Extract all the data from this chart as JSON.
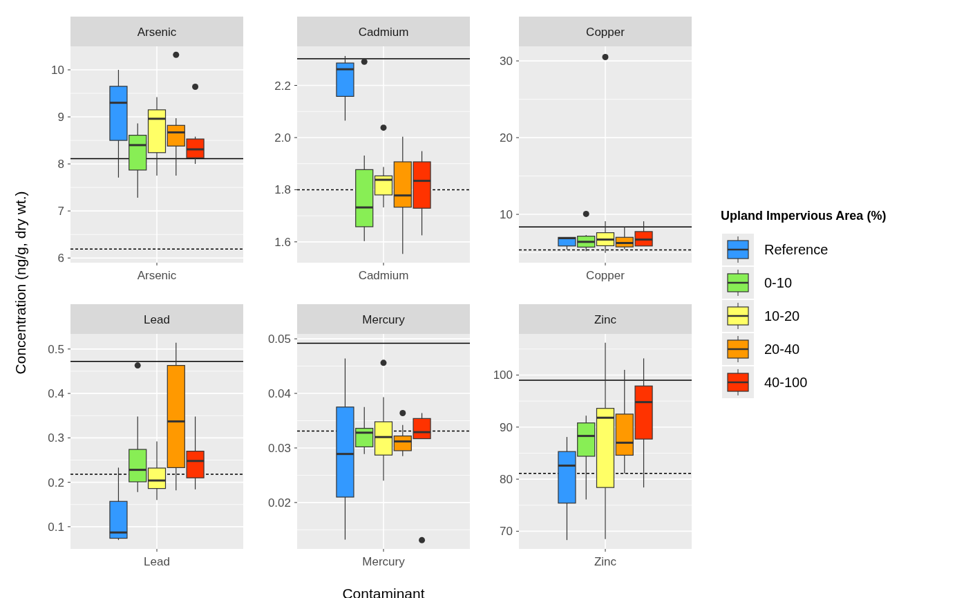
{
  "chart_data": [
    {
      "type": "box",
      "title": "Arsenic",
      "categories": [
        null,
        null,
        null,
        null,
        "Arsenic",
        null,
        null,
        null,
        null
      ],
      "ylabel": "Concentration (ng/g, dry wt.)",
      "legend_title": "Upland Impervious Area (%)",
      "legend": "right",
      "grid": true,
      "ylim": [
        5.9,
        10.5
      ],
      "yticks": [
        6,
        7,
        8,
        9,
        10
      ],
      "ref_lines": [
        {
          "axis": "y",
          "value": 8.11,
          "line_style": "solid"
        },
        {
          "axis": "y",
          "value": 6.19,
          "line_style": "dashed"
        }
      ],
      "series": [
        {
          "name": "Reference",
          "color": "#3399ff",
          "boxes": [
            null,
            null,
            {
              "low": 7.71,
              "q1": 8.5,
              "median": 9.3,
              "q3": 9.65,
              "high": 10.0
            },
            null,
            null,
            null,
            null,
            null,
            null
          ]
        },
        {
          "name": "0-10",
          "color": "#88ee55",
          "boxes": [
            null,
            null,
            null,
            {
              "low": 7.28,
              "q1": 7.87,
              "median": 8.4,
              "q3": 8.61,
              "high": 8.86
            },
            null,
            null,
            null,
            null,
            null
          ]
        },
        {
          "name": "10-20",
          "color": "#ffff66",
          "boxes": [
            null,
            null,
            null,
            null,
            {
              "low": 7.75,
              "q1": 8.24,
              "median": 8.96,
              "q3": 9.15,
              "high": 9.42
            },
            null,
            null,
            null,
            null
          ]
        },
        {
          "name": "20-40",
          "color": "#ff9900",
          "boxes": [
            null,
            null,
            null,
            null,
            null,
            {
              "low": 7.75,
              "q1": 8.38,
              "median": 8.67,
              "q3": 8.82,
              "high": 8.97,
              "outliers": [
                10.32
              ]
            },
            null,
            null,
            null
          ]
        },
        {
          "name": "40-100",
          "color": "#ff3300",
          "boxes": [
            null,
            null,
            null,
            null,
            null,
            null,
            {
              "low": 8.0,
              "q1": 8.13,
              "median": 8.31,
              "q3": 8.53,
              "high": 8.58,
              "outliers": [
                9.64
              ]
            },
            null,
            null
          ]
        }
      ]
    },
    {
      "type": "box",
      "title": "Cadmium",
      "categories": [
        null,
        null,
        null,
        null,
        "Cadmium",
        null,
        null,
        null,
        null
      ],
      "grid": true,
      "ylim": [
        1.52,
        2.35
      ],
      "yticks": [
        {
          "value": 1.6,
          "label": "1.6"
        },
        {
          "value": 1.8,
          "label": "1.8"
        },
        {
          "value": 2.0,
          "label": "2.0"
        },
        {
          "value": 2.2,
          "label": "2.2"
        }
      ],
      "ref_lines": [
        {
          "axis": "y",
          "value": 2.302,
          "line_style": "solid"
        },
        {
          "axis": "y",
          "value": 1.8,
          "line_style": "dashed"
        }
      ],
      "series": [
        {
          "color": "#3399ff",
          "boxes": [
            null,
            null,
            {
              "low": 2.065,
              "q1": 2.158,
              "median": 2.262,
              "q3": 2.286,
              "high": 2.313
            },
            null,
            null,
            null,
            null,
            null,
            null
          ]
        },
        {
          "color": "#88ee55",
          "boxes": [
            null,
            null,
            null,
            {
              "low": 1.603,
              "q1": 1.658,
              "median": 1.732,
              "q3": 1.877,
              "high": 1.931,
              "outliers": [
                2.291
              ]
            },
            null,
            null,
            null,
            null,
            null
          ]
        },
        {
          "color": "#ffff66",
          "boxes": [
            null,
            null,
            null,
            null,
            {
              "low": 1.732,
              "q1": 1.78,
              "median": 1.838,
              "q3": 1.853,
              "high": 1.887,
              "outliers": [
                2.038
              ]
            },
            null,
            null,
            null,
            null
          ]
        },
        {
          "color": "#ff9900",
          "boxes": [
            null,
            null,
            null,
            null,
            null,
            {
              "low": 1.554,
              "q1": 1.733,
              "median": 1.778,
              "q3": 1.907,
              "high": 2.003
            },
            null,
            null,
            null
          ]
        },
        {
          "color": "#ff3300",
          "boxes": [
            null,
            null,
            null,
            null,
            null,
            null,
            {
              "low": 1.625,
              "q1": 1.729,
              "median": 1.834,
              "q3": 1.907,
              "high": 1.948
            },
            null,
            null
          ]
        }
      ]
    },
    {
      "type": "box",
      "title": "Copper",
      "categories": [
        null,
        null,
        null,
        null,
        "Copper",
        null,
        null,
        null,
        null
      ],
      "grid": true,
      "ylim": [
        3.7,
        31.9
      ],
      "yticks": [
        10,
        20,
        30
      ],
      "ref_lines": [
        {
          "axis": "y",
          "value": 8.36,
          "line_style": "solid"
        },
        {
          "axis": "y",
          "value": 5.37,
          "line_style": "dashed"
        }
      ],
      "series": [
        {
          "color": "#3399ff",
          "boxes": [
            null,
            null,
            {
              "low": 5.43,
              "q1": 5.88,
              "median": 6.9,
              "q3": 7.0,
              "high": 7.0
            },
            null,
            null,
            null,
            null,
            null,
            null
          ]
        },
        {
          "color": "#88ee55",
          "boxes": [
            null,
            null,
            null,
            {
              "low": 5.22,
              "q1": 5.73,
              "median": 6.42,
              "q3": 7.16,
              "high": 7.3,
              "outliers": [
                10.06
              ]
            },
            null,
            null,
            null,
            null,
            null
          ]
        },
        {
          "color": "#ffff66",
          "boxes": [
            null,
            null,
            null,
            null,
            {
              "low": 4.99,
              "q1": 5.91,
              "median": 6.72,
              "q3": 7.61,
              "high": 9.1,
              "outliers": [
                30.5
              ]
            },
            null,
            null,
            null,
            null
          ]
        },
        {
          "color": "#ff9900",
          "boxes": [
            null,
            null,
            null,
            null,
            null,
            {
              "low": 5.46,
              "q1": 5.76,
              "median": 6.27,
              "q3": 7.01,
              "high": 8.36
            },
            null,
            null,
            null
          ]
        },
        {
          "color": "#ff3300",
          "boxes": [
            null,
            null,
            null,
            null,
            null,
            null,
            {
              "low": 5.88,
              "q1": 5.88,
              "median": 6.72,
              "q3": 7.76,
              "high": 9.1
            },
            null,
            null
          ]
        }
      ]
    },
    {
      "type": "box",
      "title": "Lead",
      "categories": [
        null,
        null,
        null,
        null,
        "Lead",
        null,
        null,
        null,
        null
      ],
      "grid": true,
      "ylim": [
        0.05,
        0.534
      ],
      "yticks": [
        0.1,
        0.2,
        0.3,
        0.4,
        0.5
      ],
      "ref_lines": [
        {
          "axis": "y",
          "value": 0.472,
          "line_style": "solid"
        },
        {
          "axis": "y",
          "value": 0.218,
          "line_style": "dashed"
        }
      ],
      "series": [
        {
          "color": "#3399ff",
          "boxes": [
            null,
            null,
            {
              "low": 0.07,
              "q1": 0.074,
              "median": 0.087,
              "q3": 0.157,
              "high": 0.233
            },
            null,
            null,
            null,
            null,
            null,
            null
          ]
        },
        {
          "color": "#88ee55",
          "boxes": [
            null,
            null,
            null,
            {
              "low": 0.178,
              "q1": 0.201,
              "median": 0.228,
              "q3": 0.274,
              "high": 0.348,
              "outliers": [
                0.463
              ]
            },
            null,
            null,
            null,
            null,
            null
          ]
        },
        {
          "color": "#ffff66",
          "boxes": [
            null,
            null,
            null,
            null,
            {
              "low": 0.16,
              "q1": 0.186,
              "median": 0.204,
              "q3": 0.232,
              "high": 0.292
            },
            null,
            null,
            null,
            null
          ]
        },
        {
          "color": "#ff9900",
          "boxes": [
            null,
            null,
            null,
            null,
            null,
            {
              "low": 0.182,
              "q1": 0.233,
              "median": 0.337,
              "q3": 0.463,
              "high": 0.514
            },
            null,
            null,
            null
          ]
        },
        {
          "color": "#ff3300",
          "boxes": [
            null,
            null,
            null,
            null,
            null,
            null,
            {
              "low": 0.184,
              "q1": 0.21,
              "median": 0.248,
              "q3": 0.27,
              "high": 0.348
            },
            null,
            null
          ]
        }
      ]
    },
    {
      "type": "box",
      "title": "Mercury",
      "categories": [
        null,
        null,
        null,
        null,
        "Mercury",
        null,
        null,
        null,
        null
      ],
      "xlabel": "Contaminant",
      "grid": true,
      "ylim": [
        0.0115,
        0.0509
      ],
      "yticks": [
        0.02,
        0.03,
        0.04,
        0.05
      ],
      "ref_lines": [
        {
          "axis": "y",
          "value": 0.0492,
          "line_style": "solid"
        },
        {
          "axis": "y",
          "value": 0.0331,
          "line_style": "dashed"
        }
      ],
      "series": [
        {
          "color": "#3399ff",
          "boxes": [
            null,
            null,
            {
              "low": 0.0132,
              "q1": 0.021,
              "median": 0.0289,
              "q3": 0.0375,
              "high": 0.0464
            },
            null,
            null,
            null,
            null,
            null,
            null
          ]
        },
        {
          "color": "#88ee55",
          "boxes": [
            null,
            null,
            null,
            {
              "low": 0.0289,
              "q1": 0.0302,
              "median": 0.0328,
              "q3": 0.0336,
              "high": 0.0375
            },
            null,
            null,
            null,
            null,
            null
          ]
        },
        {
          "color": "#ffff66",
          "boxes": [
            null,
            null,
            null,
            null,
            {
              "low": 0.024,
              "q1": 0.0287,
              "median": 0.032,
              "q3": 0.0348,
              "high": 0.0393,
              "outliers": [
                0.0456
              ]
            },
            null,
            null,
            null,
            null
          ]
        },
        {
          "color": "#ff9900",
          "boxes": [
            null,
            null,
            null,
            null,
            null,
            {
              "low": 0.0285,
              "q1": 0.0295,
              "median": 0.0312,
              "q3": 0.0322,
              "high": 0.0342,
              "outliers": [
                0.0364
              ]
            },
            null,
            null,
            null
          ]
        },
        {
          "color": "#ff3300",
          "boxes": [
            null,
            null,
            null,
            null,
            null,
            null,
            {
              "low": 0.0317,
              "q1": 0.0317,
              "median": 0.0329,
              "q3": 0.0354,
              "high": 0.0364,
              "outliers": [
                0.0131
              ]
            },
            null,
            null
          ]
        }
      ]
    },
    {
      "type": "box",
      "title": "Zinc",
      "categories": [
        null,
        null,
        null,
        null,
        "Zinc",
        null,
        null,
        null,
        null
      ],
      "grid": true,
      "ylim": [
        66.6,
        107.9
      ],
      "yticks": [
        70,
        80,
        90,
        100
      ],
      "ref_lines": [
        {
          "axis": "y",
          "value": 99.0,
          "line_style": "solid"
        },
        {
          "axis": "y",
          "value": 81.1,
          "line_style": "dashed"
        }
      ],
      "series": [
        {
          "color": "#3399ff",
          "boxes": [
            null,
            null,
            {
              "low": 68.3,
              "q1": 75.4,
              "median": 82.6,
              "q3": 85.3,
              "high": 88.1
            },
            null,
            null,
            null,
            null,
            null,
            null
          ]
        },
        {
          "color": "#88ee55",
          "boxes": [
            null,
            null,
            null,
            {
              "low": 76.1,
              "q1": 84.4,
              "median": 88.3,
              "q3": 90.8,
              "high": 92.2
            },
            null,
            null,
            null,
            null,
            null
          ]
        },
        {
          "color": "#ffff66",
          "boxes": [
            null,
            null,
            null,
            null,
            {
              "low": 68.5,
              "q1": 78.4,
              "median": 91.8,
              "q3": 93.6,
              "high": 106.2
            },
            null,
            null,
            null,
            null
          ]
        },
        {
          "color": "#ff9900",
          "boxes": [
            null,
            null,
            null,
            null,
            null,
            {
              "low": 81.1,
              "q1": 84.6,
              "median": 87.0,
              "q3": 92.5,
              "high": 101.0
            },
            null,
            null,
            null
          ]
        },
        {
          "color": "#ff3300",
          "boxes": [
            null,
            null,
            null,
            null,
            null,
            null,
            {
              "low": 78.4,
              "q1": 87.7,
              "median": 94.8,
              "q3": 97.9,
              "high": 103.2
            },
            null,
            null
          ]
        }
      ]
    }
  ]
}
